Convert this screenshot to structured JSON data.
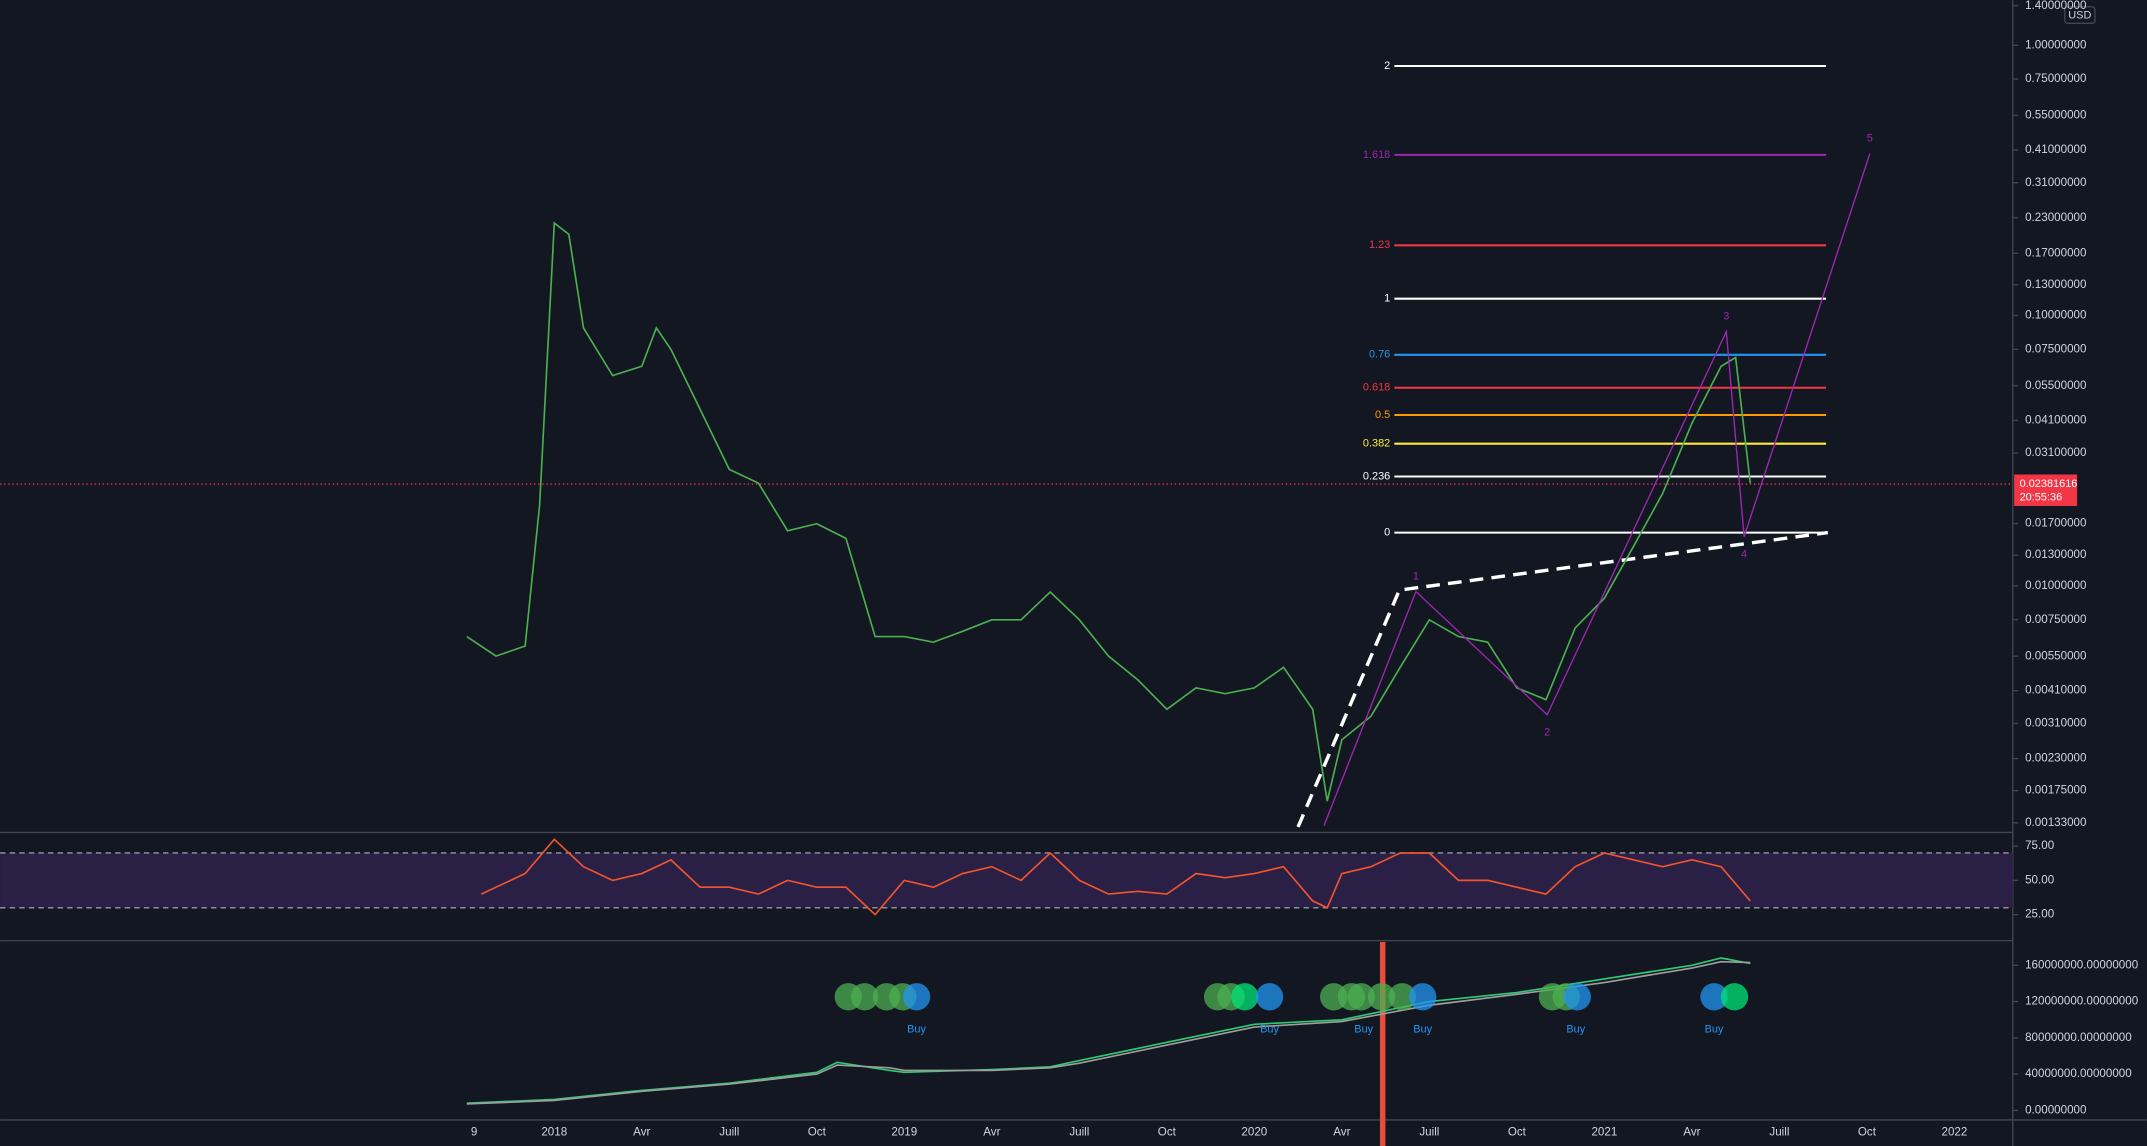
{
  "chart_data": [
    {
      "type": "line",
      "log_scale": true,
      "unit_label": "USD",
      "x": [
        -3,
        -2,
        -1,
        -0.5,
        0,
        0.5,
        1,
        2,
        3,
        3.5,
        4,
        5,
        6,
        7,
        8,
        9,
        10,
        11,
        12,
        13,
        14,
        15,
        16,
        17,
        18,
        19,
        20,
        21,
        22,
        23,
        24,
        25,
        26,
        26.5,
        27,
        28,
        29,
        30,
        31,
        32,
        33,
        34,
        35,
        36,
        37,
        38,
        39,
        40,
        40.5,
        41
      ],
      "series": [
        {
          "color": "#4caf50",
          "values": [
            0.0065,
            0.0055,
            0.006,
            0.02,
            0.22,
            0.2,
            0.09,
            0.06,
            0.065,
            0.09,
            0.075,
            0.045,
            0.027,
            0.024,
            0.016,
            0.017,
            0.015,
            0.0065,
            0.0065,
            0.0062,
            0.0068,
            0.0075,
            0.0075,
            0.0095,
            0.0075,
            0.0055,
            0.0045,
            0.0035,
            0.0042,
            0.004,
            0.0042,
            0.005,
            0.0035,
            0.0016,
            0.0027,
            0.0033,
            0.005,
            0.0075,
            0.0065,
            0.0062,
            0.0042,
            0.0038,
            0.007,
            0.009,
            0.014,
            0.022,
            0.04,
            0.065,
            0.07,
            0.024
          ]
        }
      ],
      "xlim": [
        -19,
        50
      ],
      "xticks": [
        {
          "value": -2.75,
          "label": "9"
        },
        {
          "value": 0,
          "label": "2018"
        },
        {
          "value": 3,
          "label": "Avr"
        },
        {
          "value": 6,
          "label": "Juill"
        },
        {
          "value": 9,
          "label": "Oct"
        },
        {
          "value": 12,
          "label": "2019"
        },
        {
          "value": 15,
          "label": "Avr"
        },
        {
          "value": 18,
          "label": "Juill"
        },
        {
          "value": 21,
          "label": "Oct"
        },
        {
          "value": 24,
          "label": "2020"
        },
        {
          "value": 27,
          "label": "Avr"
        },
        {
          "value": 30,
          "label": "Juill"
        },
        {
          "value": 33,
          "label": "Oct"
        },
        {
          "value": 36,
          "label": "2021"
        },
        {
          "value": 39,
          "label": "Avr"
        },
        {
          "value": 42,
          "label": "Juill"
        },
        {
          "value": 45,
          "label": "Oct"
        },
        {
          "value": 48,
          "label": "2022"
        }
      ],
      "ylim": [
        0.00124,
        1.47
      ],
      "yticks": [
        {
          "value": 1.4,
          "label": "1.40000000"
        },
        {
          "value": 1,
          "label": "1.00000000"
        },
        {
          "value": 0.75,
          "label": "0.75000000"
        },
        {
          "value": 0.55,
          "label": "0.55000000"
        },
        {
          "value": 0.41,
          "label": "0.41000000"
        },
        {
          "value": 0.31,
          "label": "0.31000000"
        },
        {
          "value": 0.23,
          "label": "0.23000000"
        },
        {
          "value": 0.17,
          "label": "0.17000000"
        },
        {
          "value": 0.13,
          "label": "0.13000000"
        },
        {
          "value": 0.1,
          "label": "0.10000000"
        },
        {
          "value": 0.075,
          "label": "0.07500000"
        },
        {
          "value": 0.055,
          "label": "0.05500000"
        },
        {
          "value": 0.041,
          "label": "0.04100000"
        },
        {
          "value": 0.031,
          "label": "0.03100000"
        },
        {
          "value": 0.017,
          "label": "0.01700000"
        },
        {
          "value": 0.013,
          "label": "0.01300000"
        },
        {
          "value": 0.01,
          "label": "0.01000000"
        },
        {
          "value": 0.0075,
          "label": "0.00750000"
        },
        {
          "value": 0.0055,
          "label": "0.00550000"
        },
        {
          "value": 0.0041,
          "label": "0.00410000"
        },
        {
          "value": 0.0031,
          "label": "0.00310000"
        },
        {
          "value": 0.0023,
          "label": "0.00230000"
        },
        {
          "value": 0.00175,
          "label": "0.00175000"
        },
        {
          "value": 0.00133,
          "label": "0.00133000"
        }
      ],
      "last_price": 0.02381616,
      "countdown": "20:55:36",
      "fib_x": [
        28.8,
        43.6
      ],
      "fib_levels": [
        {
          "label": "2",
          "value": 0.838,
          "color": "#ffffff"
        },
        {
          "label": "1.618",
          "value": 0.393,
          "color": "#9c27b0"
        },
        {
          "label": "1.23",
          "value": 0.182,
          "color": "#f23645"
        },
        {
          "label": "1",
          "value": 0.1155,
          "color": "#ffffff"
        },
        {
          "label": "0.76",
          "value": 0.0716,
          "color": "#2196f3"
        },
        {
          "label": "0.618",
          "value": 0.0541,
          "color": "#f23645"
        },
        {
          "label": "0.5",
          "value": 0.0429,
          "color": "#ff9800"
        },
        {
          "label": "0.382",
          "value": 0.0336,
          "color": "#ffeb3b"
        },
        {
          "label": "0.236",
          "value": 0.0254,
          "color": "#ffffff"
        },
        {
          "label": "0",
          "value": 0.01575,
          "color": "#ffffff"
        }
      ],
      "waves": {
        "color": "#9c27b0",
        "labels": [
          null,
          "1",
          "2",
          "3",
          "4",
          "5"
        ],
        "x": [
          26.39,
          29.54,
          34.04,
          40.18,
          40.79,
          45.1
        ],
        "values": [
          0.0013,
          0.00954,
          0.00334,
          0.0873,
          0.0152,
          0.397
        ]
      }
    },
    {
      "type": "line",
      "x": [
        -2.5,
        -1,
        0,
        1,
        2,
        3,
        4,
        5,
        6,
        7,
        8,
        9,
        10,
        11,
        12,
        13,
        14,
        15,
        16,
        17,
        18,
        19,
        20,
        21,
        22,
        23,
        24,
        25,
        26,
        26.5,
        27,
        28,
        29,
        30,
        31,
        32,
        33,
        34,
        35,
        36,
        37,
        38,
        39,
        40,
        41
      ],
      "series": [
        {
          "color": "#f2542d",
          "values": [
            40,
            55,
            80,
            60,
            50,
            55,
            65,
            45,
            45,
            40,
            50,
            45,
            45,
            25,
            50,
            45,
            55,
            60,
            50,
            70,
            50,
            40,
            42,
            40,
            55,
            52,
            55,
            60,
            35,
            30,
            55,
            60,
            70,
            70,
            50,
            50,
            45,
            40,
            60,
            70,
            65,
            60,
            65,
            60,
            35
          ]
        }
      ],
      "ylim": [
        6,
        85
      ],
      "yticks": [
        {
          "value": 75,
          "label": "75.00"
        },
        {
          "value": 50,
          "label": "50.00"
        },
        {
          "value": 25,
          "label": "25.00"
        }
      ],
      "bands": [
        30,
        70
      ],
      "band_color": "#2a1f45"
    },
    {
      "type": "line",
      "x": [
        -3,
        0,
        3,
        6,
        9,
        9.7,
        11.5,
        12,
        15,
        17,
        18,
        21,
        24,
        27,
        30,
        33,
        36,
        39,
        40,
        41
      ],
      "series": [
        {
          "color": "#2ecc71",
          "values": [
            8000000,
            12000000,
            22000000,
            30000000,
            42000000,
            53000000,
            44000000,
            42000000,
            45000000,
            48000000,
            55000000,
            75000000,
            95000000,
            100000000,
            120000000,
            130000000,
            145000000,
            160000000,
            168000000,
            162000000
          ]
        },
        {
          "color": "#9e9e9e",
          "values": [
            7000000,
            11000000,
            21000000,
            29000000,
            40000000,
            50000000,
            47000000,
            44000000,
            44000000,
            47000000,
            52000000,
            72000000,
            92000000,
            98000000,
            116000000,
            128000000,
            141000000,
            157000000,
            164000000,
            163000000
          ]
        }
      ],
      "ylim": [
        -10600000,
        185700000
      ],
      "yticks": [
        {
          "value": 160000000,
          "label": "160000000.00000000"
        },
        {
          "value": 120000000,
          "label": "120000000.00000000"
        },
        {
          "value": 80000000,
          "label": "80000000.00000000"
        },
        {
          "value": 40000000,
          "label": "40000000.00000000"
        },
        {
          "value": 0,
          "label": "0.00000000"
        }
      ],
      "bubbles": {
        "x": [
          10.08,
          10.64,
          11.39,
          11.95,
          12.42,
          22.74,
          23.2,
          23.67,
          24.52,
          26.72,
          27.33,
          27.66,
          28.36,
          29.07,
          29.77,
          34.22,
          34.69,
          35.07,
          39.76,
          40.46
        ],
        "colors": [
          "#4caf50",
          "#4caf50",
          "#4caf50",
          "#4caf50",
          "#2196f3",
          "#4caf50",
          "#4caf50",
          "#00e676",
          "#2196f3",
          "#4caf50",
          "#4caf50",
          "#4caf50",
          "#4caf50",
          "#4caf50",
          "#2196f3",
          "#4caf50",
          "#4caf50",
          "#2196f3",
          "#2196f3",
          "#00e676"
        ]
      },
      "signals": {
        "x": [
          12.42,
          24.52,
          27.75,
          29.77,
          35.02,
          39.76
        ],
        "labels": [
          "Buy",
          "Buy",
          "Buy",
          "Buy",
          "Buy",
          "Buy"
        ],
        "color": "#2196f3"
      },
      "marker_x": 28.4,
      "marker_color": "#e74c3c"
    }
  ]
}
